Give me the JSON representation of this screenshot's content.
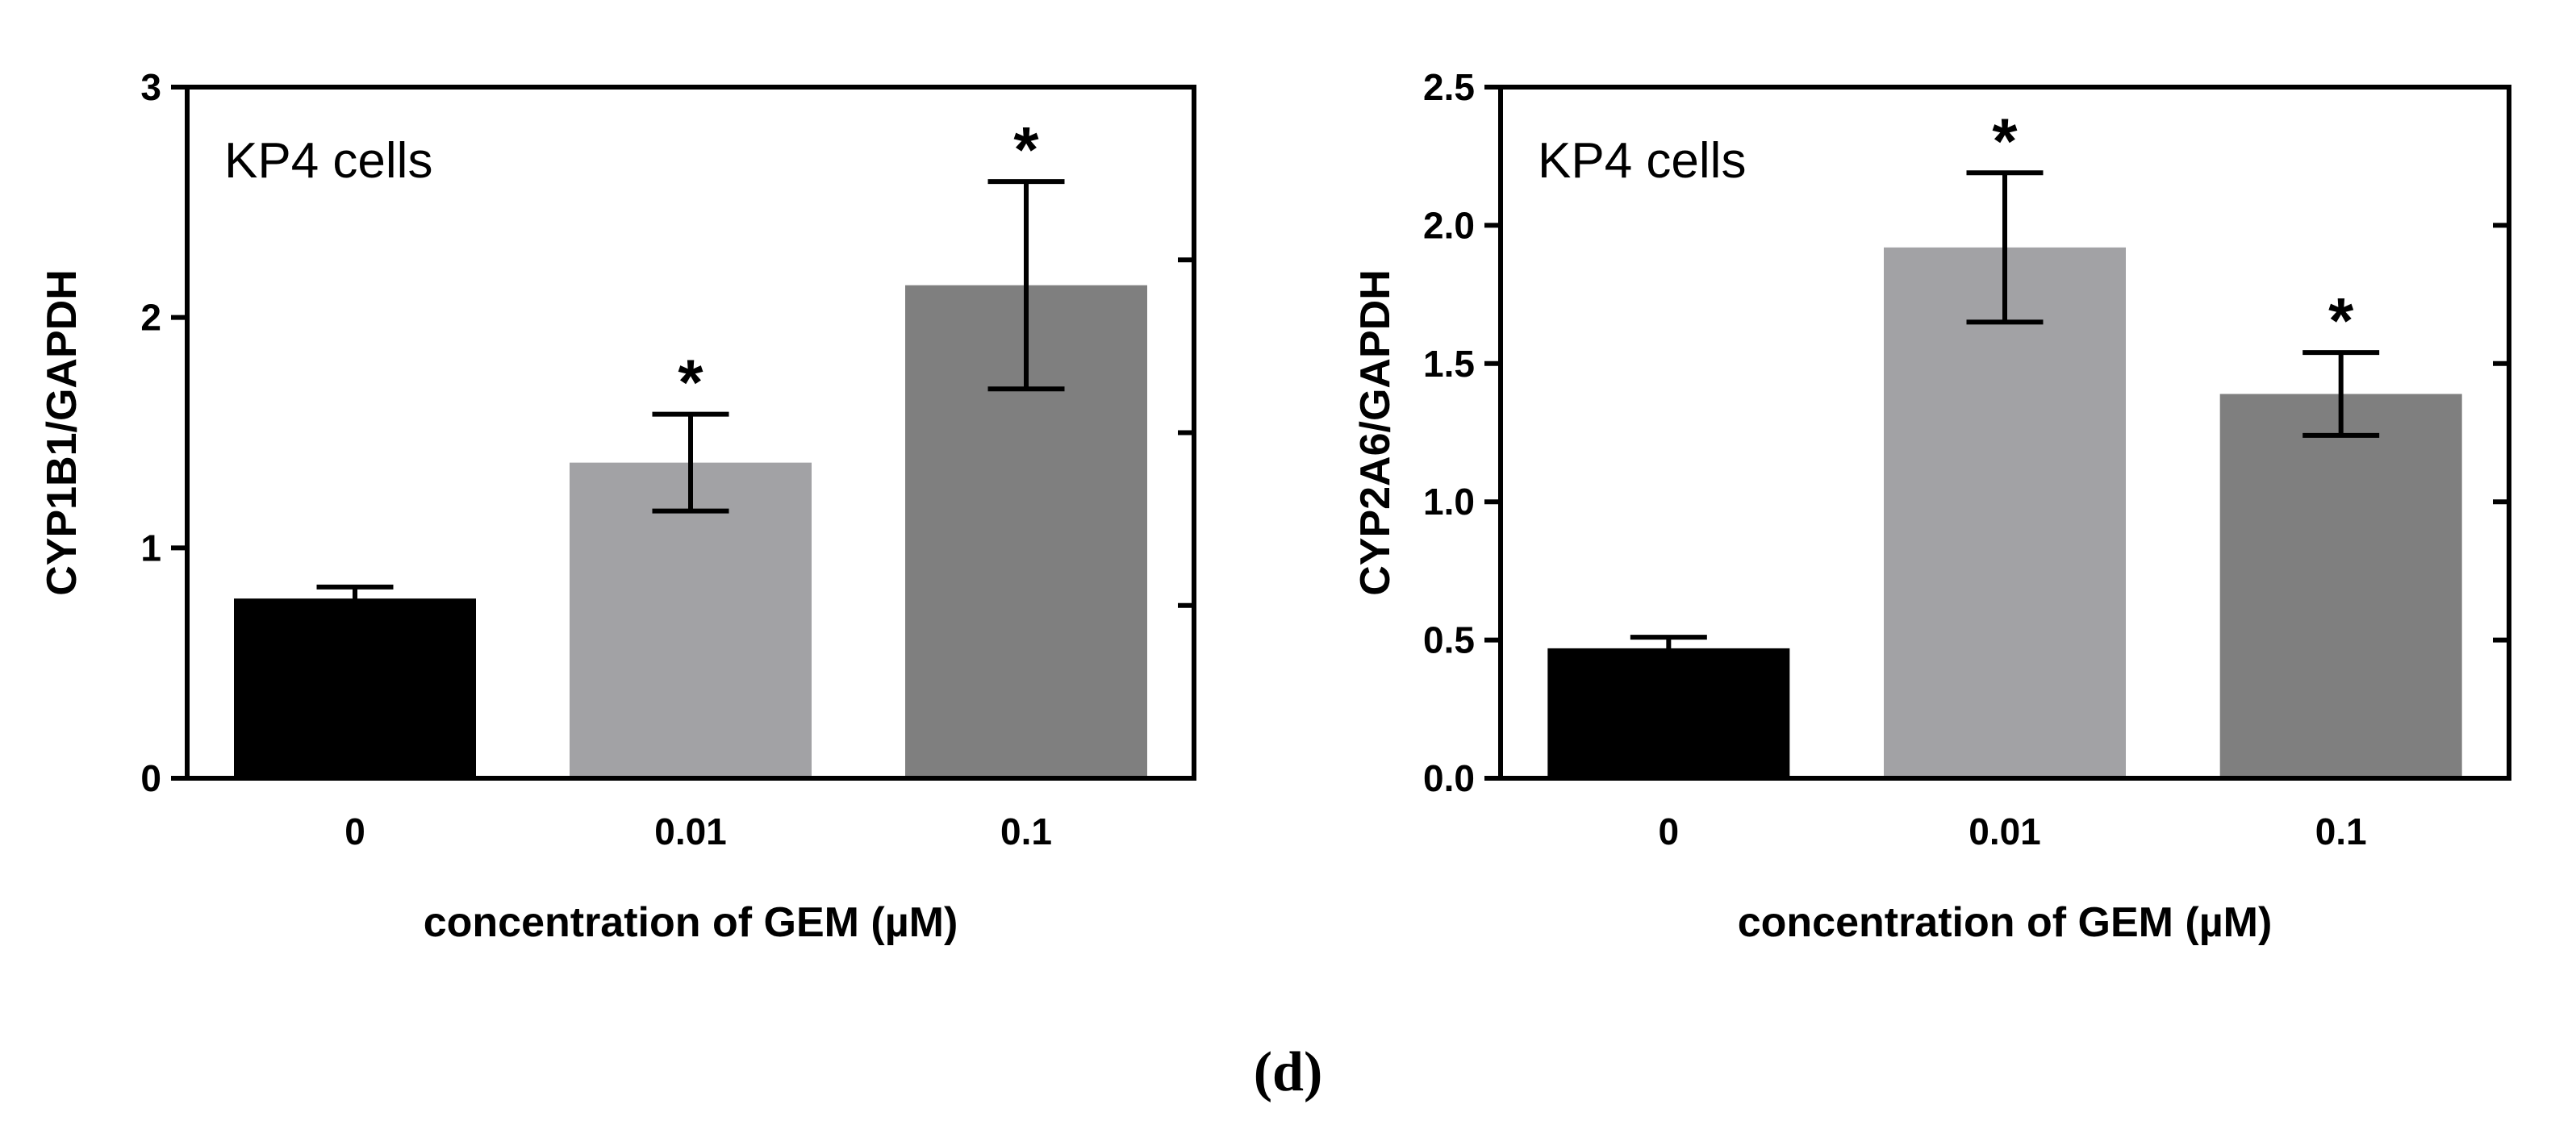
{
  "figure_label": "(d)",
  "chart_data": [
    {
      "type": "bar",
      "annotation": "KP4 cells",
      "ylabel": "CYP1B1/GAPDH",
      "xlabel": "concentration of GEM (µM)",
      "categories": [
        "0",
        "0.01",
        "0.1"
      ],
      "values": [
        0.78,
        1.37,
        2.14
      ],
      "errors": [
        0.05,
        0.21,
        0.45
      ],
      "significance": [
        "",
        "*",
        "*"
      ],
      "colors": [
        "#000000",
        "#a2a2a5",
        "#7f7f7f"
      ],
      "ylim": [
        0,
        3
      ],
      "yticks": [
        0,
        1,
        2,
        3
      ],
      "ytick_labels": [
        "0",
        "1",
        "2",
        "3"
      ],
      "right_ticks": [
        0.75,
        1.5,
        2.25
      ],
      "grid": false
    },
    {
      "type": "bar",
      "annotation": "KP4 cells",
      "ylabel": "CYP2A6/GAPDH",
      "xlabel": "concentration of GEM (µM)",
      "categories": [
        "0",
        "0.01",
        "0.1"
      ],
      "values": [
        0.47,
        1.92,
        1.39
      ],
      "errors": [
        0.04,
        0.27,
        0.15
      ],
      "significance": [
        "",
        "*",
        "*"
      ],
      "colors": [
        "#000000",
        "#a2a2a5",
        "#7f7f7f"
      ],
      "ylim": [
        0,
        2.5
      ],
      "yticks": [
        0,
        0.5,
        1.0,
        1.5,
        2.0,
        2.5
      ],
      "ytick_labels": [
        "0.0",
        "0.5",
        "1.0",
        "1.5",
        "2.0",
        "2.5"
      ],
      "right_ticks": [
        0.5,
        1.0,
        1.5,
        2.0
      ],
      "grid": false
    }
  ]
}
